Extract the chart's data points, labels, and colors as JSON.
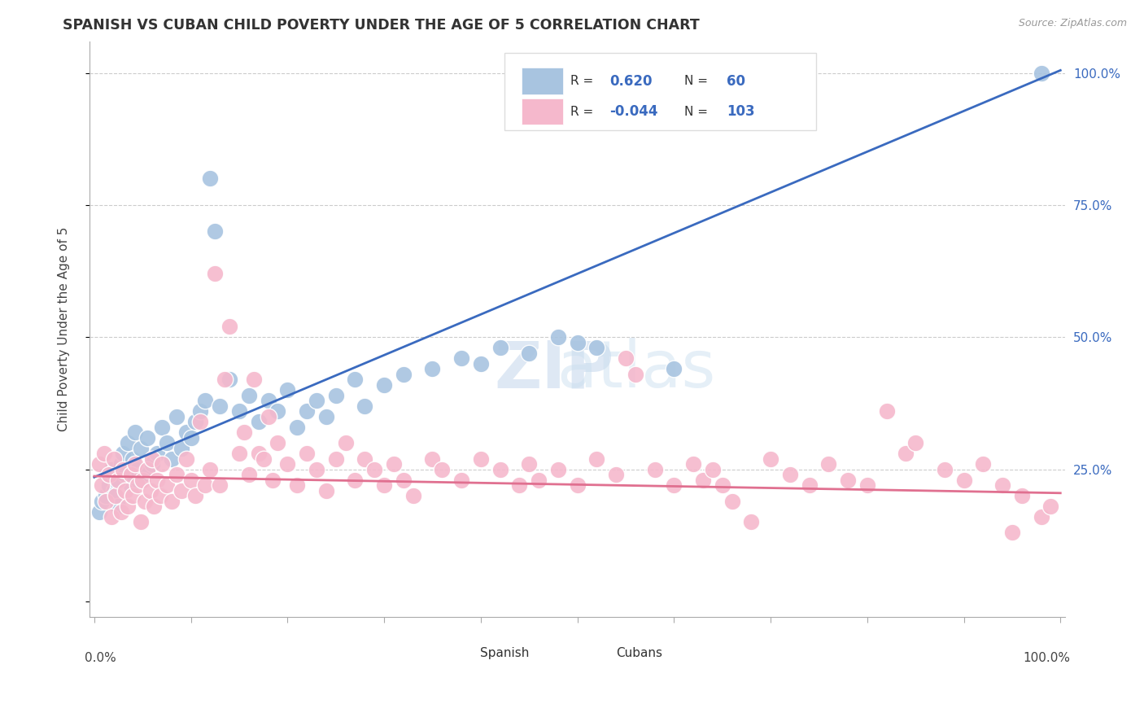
{
  "title": "SPANISH VS CUBAN CHILD POVERTY UNDER THE AGE OF 5 CORRELATION CHART",
  "source": "Source: ZipAtlas.com",
  "ylabel": "Child Poverty Under the Age of 5",
  "watermark_zip": "ZIP",
  "watermark_atlas": "atlas",
  "legend_r_spanish": "0.620",
  "legend_n_spanish": "60",
  "legend_r_cuban": "-0.044",
  "legend_n_cuban": "103",
  "spanish_color": "#a8c4e0",
  "cuban_color": "#f5b8cc",
  "trendline_spanish_color": "#3a6abf",
  "trendline_cuban_color": "#e07090",
  "background_color": "#ffffff",
  "grid_color": "#cccccc",
  "text_color": "#444444",
  "blue_label_color": "#3a6abf",
  "trend_sp_x0": 0.0,
  "trend_sp_y0": 0.235,
  "trend_sp_x1": 1.0,
  "trend_sp_y1": 1.005,
  "trend_cu_x0": 0.0,
  "trend_cu_y0": 0.237,
  "trend_cu_x1": 1.0,
  "trend_cu_y1": 0.205,
  "ylim_min": -0.03,
  "ylim_max": 1.06,
  "xlim_min": -0.005,
  "xlim_max": 1.005,
  "spanish_points": [
    [
      0.005,
      0.17
    ],
    [
      0.008,
      0.19
    ],
    [
      0.012,
      0.2
    ],
    [
      0.015,
      0.22
    ],
    [
      0.018,
      0.25
    ],
    [
      0.02,
      0.21
    ],
    [
      0.022,
      0.23
    ],
    [
      0.025,
      0.18
    ],
    [
      0.028,
      0.26
    ],
    [
      0.03,
      0.28
    ],
    [
      0.032,
      0.24
    ],
    [
      0.035,
      0.3
    ],
    [
      0.038,
      0.22
    ],
    [
      0.04,
      0.27
    ],
    [
      0.042,
      0.32
    ],
    [
      0.045,
      0.25
    ],
    [
      0.048,
      0.29
    ],
    [
      0.05,
      0.24
    ],
    [
      0.055,
      0.31
    ],
    [
      0.06,
      0.26
    ],
    [
      0.065,
      0.28
    ],
    [
      0.07,
      0.33
    ],
    [
      0.075,
      0.3
    ],
    [
      0.08,
      0.27
    ],
    [
      0.085,
      0.35
    ],
    [
      0.09,
      0.29
    ],
    [
      0.095,
      0.32
    ],
    [
      0.1,
      0.31
    ],
    [
      0.105,
      0.34
    ],
    [
      0.11,
      0.36
    ],
    [
      0.115,
      0.38
    ],
    [
      0.12,
      0.8
    ],
    [
      0.125,
      0.7
    ],
    [
      0.13,
      0.37
    ],
    [
      0.14,
      0.42
    ],
    [
      0.15,
      0.36
    ],
    [
      0.16,
      0.39
    ],
    [
      0.17,
      0.34
    ],
    [
      0.18,
      0.38
    ],
    [
      0.19,
      0.36
    ],
    [
      0.2,
      0.4
    ],
    [
      0.21,
      0.33
    ],
    [
      0.22,
      0.36
    ],
    [
      0.23,
      0.38
    ],
    [
      0.24,
      0.35
    ],
    [
      0.25,
      0.39
    ],
    [
      0.27,
      0.42
    ],
    [
      0.28,
      0.37
    ],
    [
      0.3,
      0.41
    ],
    [
      0.32,
      0.43
    ],
    [
      0.35,
      0.44
    ],
    [
      0.38,
      0.46
    ],
    [
      0.4,
      0.45
    ],
    [
      0.42,
      0.48
    ],
    [
      0.45,
      0.47
    ],
    [
      0.48,
      0.5
    ],
    [
      0.5,
      0.49
    ],
    [
      0.52,
      0.48
    ],
    [
      0.6,
      0.44
    ],
    [
      0.98,
      1.0
    ]
  ],
  "cuban_points": [
    [
      0.005,
      0.26
    ],
    [
      0.008,
      0.22
    ],
    [
      0.01,
      0.28
    ],
    [
      0.012,
      0.19
    ],
    [
      0.015,
      0.24
    ],
    [
      0.018,
      0.16
    ],
    [
      0.02,
      0.27
    ],
    [
      0.022,
      0.2
    ],
    [
      0.025,
      0.23
    ],
    [
      0.028,
      0.17
    ],
    [
      0.03,
      0.25
    ],
    [
      0.032,
      0.21
    ],
    [
      0.035,
      0.18
    ],
    [
      0.038,
      0.24
    ],
    [
      0.04,
      0.2
    ],
    [
      0.042,
      0.26
    ],
    [
      0.045,
      0.22
    ],
    [
      0.048,
      0.15
    ],
    [
      0.05,
      0.23
    ],
    [
      0.052,
      0.19
    ],
    [
      0.055,
      0.25
    ],
    [
      0.058,
      0.21
    ],
    [
      0.06,
      0.27
    ],
    [
      0.062,
      0.18
    ],
    [
      0.065,
      0.23
    ],
    [
      0.068,
      0.2
    ],
    [
      0.07,
      0.26
    ],
    [
      0.075,
      0.22
    ],
    [
      0.08,
      0.19
    ],
    [
      0.085,
      0.24
    ],
    [
      0.09,
      0.21
    ],
    [
      0.095,
      0.27
    ],
    [
      0.1,
      0.23
    ],
    [
      0.105,
      0.2
    ],
    [
      0.11,
      0.34
    ],
    [
      0.115,
      0.22
    ],
    [
      0.12,
      0.25
    ],
    [
      0.125,
      0.62
    ],
    [
      0.13,
      0.22
    ],
    [
      0.135,
      0.42
    ],
    [
      0.14,
      0.52
    ],
    [
      0.15,
      0.28
    ],
    [
      0.155,
      0.32
    ],
    [
      0.16,
      0.24
    ],
    [
      0.165,
      0.42
    ],
    [
      0.17,
      0.28
    ],
    [
      0.175,
      0.27
    ],
    [
      0.18,
      0.35
    ],
    [
      0.185,
      0.23
    ],
    [
      0.19,
      0.3
    ],
    [
      0.2,
      0.26
    ],
    [
      0.21,
      0.22
    ],
    [
      0.22,
      0.28
    ],
    [
      0.23,
      0.25
    ],
    [
      0.24,
      0.21
    ],
    [
      0.25,
      0.27
    ],
    [
      0.26,
      0.3
    ],
    [
      0.27,
      0.23
    ],
    [
      0.28,
      0.27
    ],
    [
      0.29,
      0.25
    ],
    [
      0.3,
      0.22
    ],
    [
      0.31,
      0.26
    ],
    [
      0.32,
      0.23
    ],
    [
      0.33,
      0.2
    ],
    [
      0.35,
      0.27
    ],
    [
      0.36,
      0.25
    ],
    [
      0.38,
      0.23
    ],
    [
      0.4,
      0.27
    ],
    [
      0.42,
      0.25
    ],
    [
      0.44,
      0.22
    ],
    [
      0.45,
      0.26
    ],
    [
      0.46,
      0.23
    ],
    [
      0.48,
      0.25
    ],
    [
      0.5,
      0.22
    ],
    [
      0.52,
      0.27
    ],
    [
      0.54,
      0.24
    ],
    [
      0.55,
      0.46
    ],
    [
      0.56,
      0.43
    ],
    [
      0.58,
      0.25
    ],
    [
      0.6,
      0.22
    ],
    [
      0.62,
      0.26
    ],
    [
      0.63,
      0.23
    ],
    [
      0.64,
      0.25
    ],
    [
      0.65,
      0.22
    ],
    [
      0.66,
      0.19
    ],
    [
      0.68,
      0.15
    ],
    [
      0.7,
      0.27
    ],
    [
      0.72,
      0.24
    ],
    [
      0.74,
      0.22
    ],
    [
      0.76,
      0.26
    ],
    [
      0.78,
      0.23
    ],
    [
      0.8,
      0.22
    ],
    [
      0.82,
      0.36
    ],
    [
      0.84,
      0.28
    ],
    [
      0.85,
      0.3
    ],
    [
      0.88,
      0.25
    ],
    [
      0.9,
      0.23
    ],
    [
      0.92,
      0.26
    ],
    [
      0.94,
      0.22
    ],
    [
      0.95,
      0.13
    ],
    [
      0.96,
      0.2
    ],
    [
      0.98,
      0.16
    ],
    [
      0.99,
      0.18
    ]
  ]
}
